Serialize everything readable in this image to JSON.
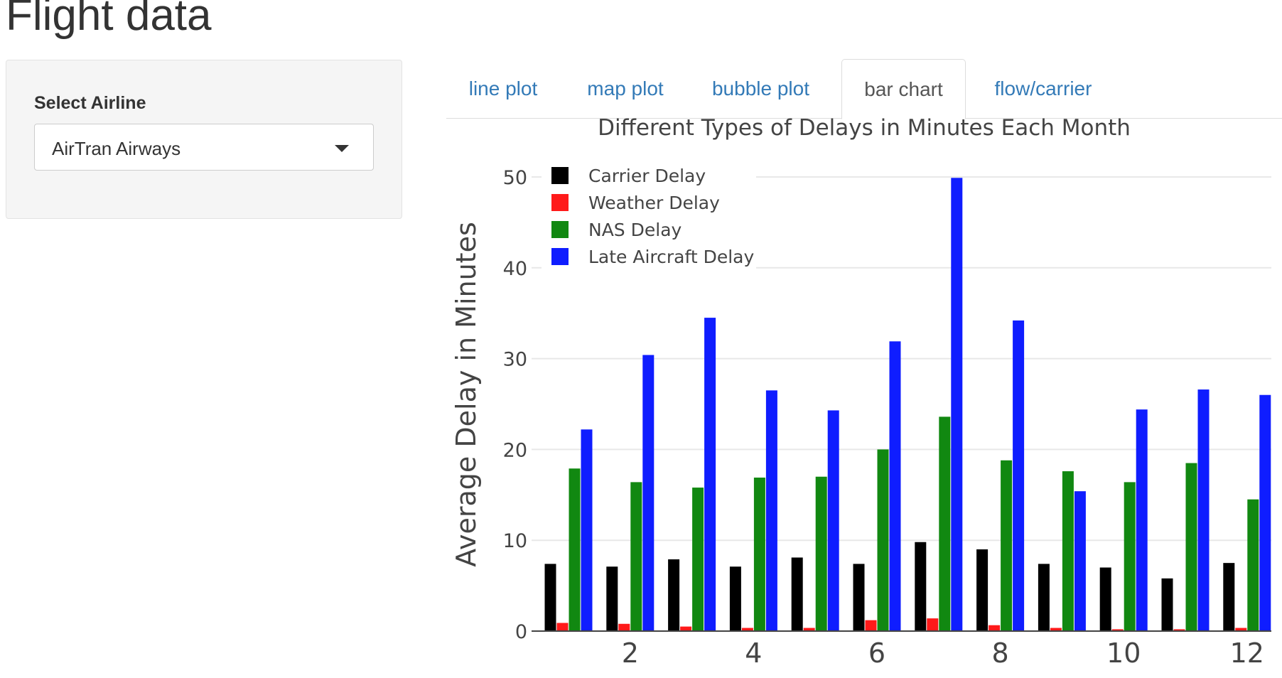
{
  "page": {
    "title": "Flight data"
  },
  "sidebar": {
    "select_label": "Select Airline",
    "selected_airline": "AirTran Airways",
    "caret_icon": "chevron-down-icon"
  },
  "tabs": [
    {
      "label": "line plot",
      "active": false
    },
    {
      "label": "map plot",
      "active": false
    },
    {
      "label": "bubble plot",
      "active": false
    },
    {
      "label": "bar chart",
      "active": true
    },
    {
      "label": "flow/carrier",
      "active": false
    }
  ],
  "colors": {
    "link": "#337ab7",
    "grid": "#e8e8e8"
  },
  "chart_data": {
    "type": "bar",
    "title": "Different Types of Delays in Minutes Each Month",
    "xlabel": "",
    "ylabel": "Average Delay in Minutes",
    "x": [
      1,
      2,
      3,
      4,
      5,
      6,
      7,
      8,
      9,
      10,
      11,
      12
    ],
    "xticks": [
      2,
      4,
      6,
      8,
      10,
      12
    ],
    "yticks": [
      0,
      10,
      20,
      30,
      40,
      50
    ],
    "ylim": [
      0,
      50
    ],
    "grid": true,
    "legend_position": "top-left",
    "series": [
      {
        "name": "Carrier Delay",
        "color": "#000000",
        "values": [
          7.4,
          7.1,
          7.9,
          7.1,
          8.1,
          7.4,
          9.8,
          9.0,
          7.4,
          7.0,
          5.8,
          7.5
        ]
      },
      {
        "name": "Weather Delay",
        "color": "#ff1a1a",
        "values": [
          0.9,
          0.8,
          0.5,
          0.35,
          0.35,
          1.2,
          1.4,
          0.65,
          0.35,
          0.2,
          0.2,
          0.35
        ]
      },
      {
        "name": "NAS Delay",
        "color": "#118811",
        "values": [
          17.9,
          16.4,
          15.8,
          16.9,
          17.0,
          20.0,
          23.6,
          18.8,
          17.6,
          16.4,
          18.5,
          14.5
        ]
      },
      {
        "name": "Late Aircraft Delay",
        "color": "#0f1dff",
        "values": [
          22.2,
          30.4,
          34.5,
          26.5,
          24.3,
          31.9,
          49.9,
          34.2,
          15.4,
          24.4,
          26.6,
          26.0
        ]
      }
    ]
  }
}
